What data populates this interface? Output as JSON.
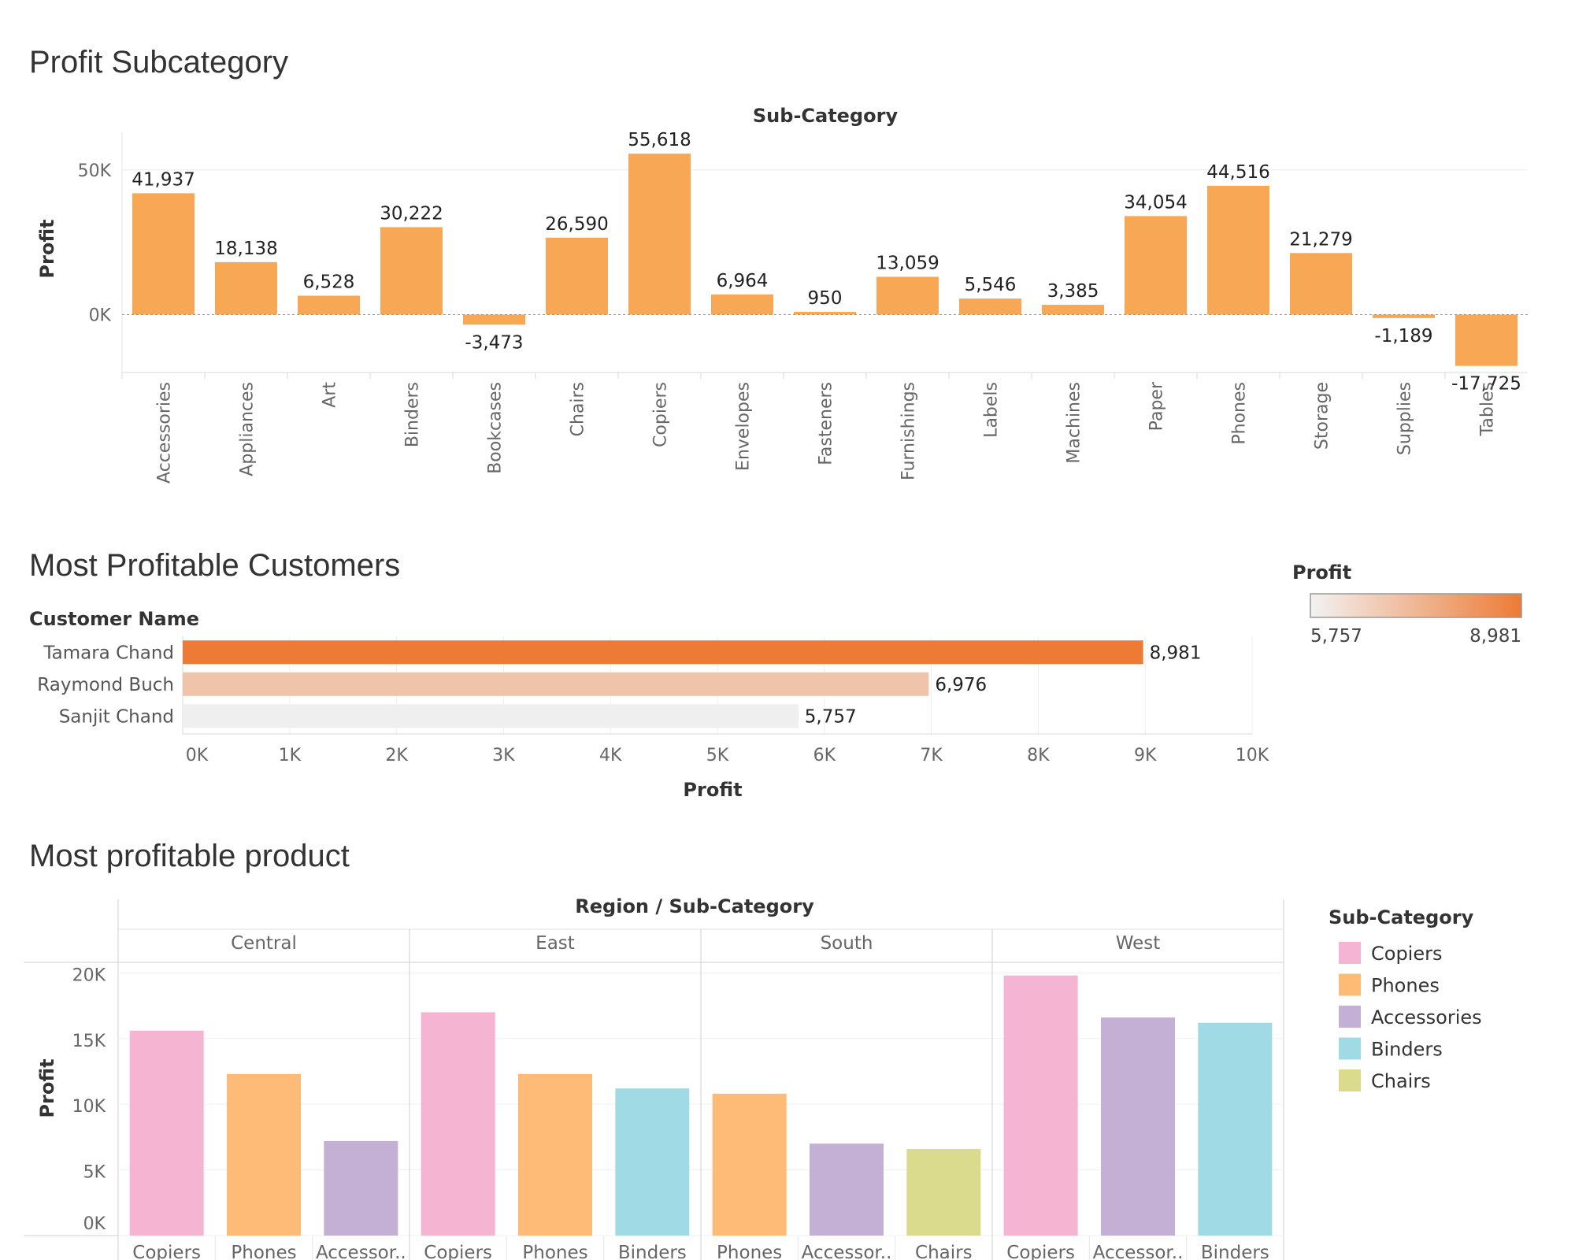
{
  "chart_data": [
    {
      "type": "bar",
      "title": "Profit Subcategory",
      "xlabel": "Sub-Category",
      "ylabel": "Profit",
      "ylim": [
        -20000,
        63000
      ],
      "yticks": [
        "50K",
        "0K"
      ],
      "categories": [
        "Accessories",
        "Appliances",
        "Art",
        "Binders",
        "Bookcases",
        "Chairs",
        "Copiers",
        "Envelopes",
        "Fasteners",
        "Furnishings",
        "Labels",
        "Machines",
        "Paper",
        "Phones",
        "Storage",
        "Supplies",
        "Tables"
      ],
      "values": [
        41937,
        18138,
        6528,
        30222,
        -3473,
        26590,
        55618,
        6964,
        950,
        13059,
        5546,
        3385,
        34054,
        44516,
        21279,
        -1189,
        -17725
      ],
      "value_labels": [
        "41,937",
        "18,138",
        "6,528",
        "30,222",
        "-3,473",
        "26,590",
        "55,618",
        "6,964",
        "950",
        "13,059",
        "5,546",
        "3,385",
        "34,054",
        "44,516",
        "21,279",
        "-1,189",
        "-17,725"
      ],
      "color": "#f8a755",
      "grid": true
    },
    {
      "type": "bar",
      "orientation": "horizontal",
      "title": "Most Profitable Customers",
      "ylabel": "Customer Name",
      "xlabel": "Profit",
      "xlim": [
        0,
        10000
      ],
      "xticks": [
        "0K",
        "1K",
        "2K",
        "3K",
        "4K",
        "5K",
        "6K",
        "7K",
        "8K",
        "9K",
        "10K"
      ],
      "categories": [
        "Tamara Chand",
        "Raymond Buch",
        "Sanjit Chand"
      ],
      "values": [
        8981,
        6976,
        5757
      ],
      "value_labels": [
        "8,981",
        "6,976",
        "5,757"
      ],
      "colors": [
        "#ed7b36",
        "#efc4aa",
        "#efefef"
      ],
      "legend": {
        "title": "Profit",
        "min_label": "5,757",
        "max_label": "8,981",
        "color_low": "#f2f2f2",
        "color_high": "#ed7b36",
        "position": "top-right"
      }
    },
    {
      "type": "bar",
      "title": "Most profitable product",
      "xlabel": "Region / Sub-Category",
      "ylabel": "Profit",
      "ylim": [
        0,
        20800
      ],
      "yticks": [
        "20K",
        "15K",
        "10K",
        "5K",
        "0K"
      ],
      "panels": [
        {
          "region": "Central",
          "categories": [
            "Copiers",
            "Phones",
            "Accessor.."
          ],
          "series": [
            "Copiers",
            "Phones",
            "Accessories"
          ],
          "values": [
            15600,
            12300,
            7200
          ]
        },
        {
          "region": "East",
          "categories": [
            "Copiers",
            "Phones",
            "Binders"
          ],
          "series": [
            "Copiers",
            "Phones",
            "Binders"
          ],
          "values": [
            17000,
            12300,
            11200
          ]
        },
        {
          "region": "South",
          "categories": [
            "Phones",
            "Accessor..",
            "Chairs"
          ],
          "series": [
            "Phones",
            "Accessories",
            "Chairs"
          ],
          "values": [
            10800,
            7000,
            6600
          ]
        },
        {
          "region": "West",
          "categories": [
            "Copiers",
            "Accessor..",
            "Binders"
          ],
          "series": [
            "Copiers",
            "Accessories",
            "Binders"
          ],
          "values": [
            19800,
            16600,
            16200
          ]
        }
      ],
      "legend": {
        "title": "Sub-Category",
        "position": "right",
        "items": [
          {
            "name": "Copiers",
            "color": "#f5b5d2"
          },
          {
            "name": "Phones",
            "color": "#fdbb77"
          },
          {
            "name": "Accessories",
            "color": "#c5b0d5"
          },
          {
            "name": "Binders",
            "color": "#9fdae5"
          },
          {
            "name": "Chairs",
            "color": "#dbdb8d"
          }
        ]
      }
    }
  ]
}
